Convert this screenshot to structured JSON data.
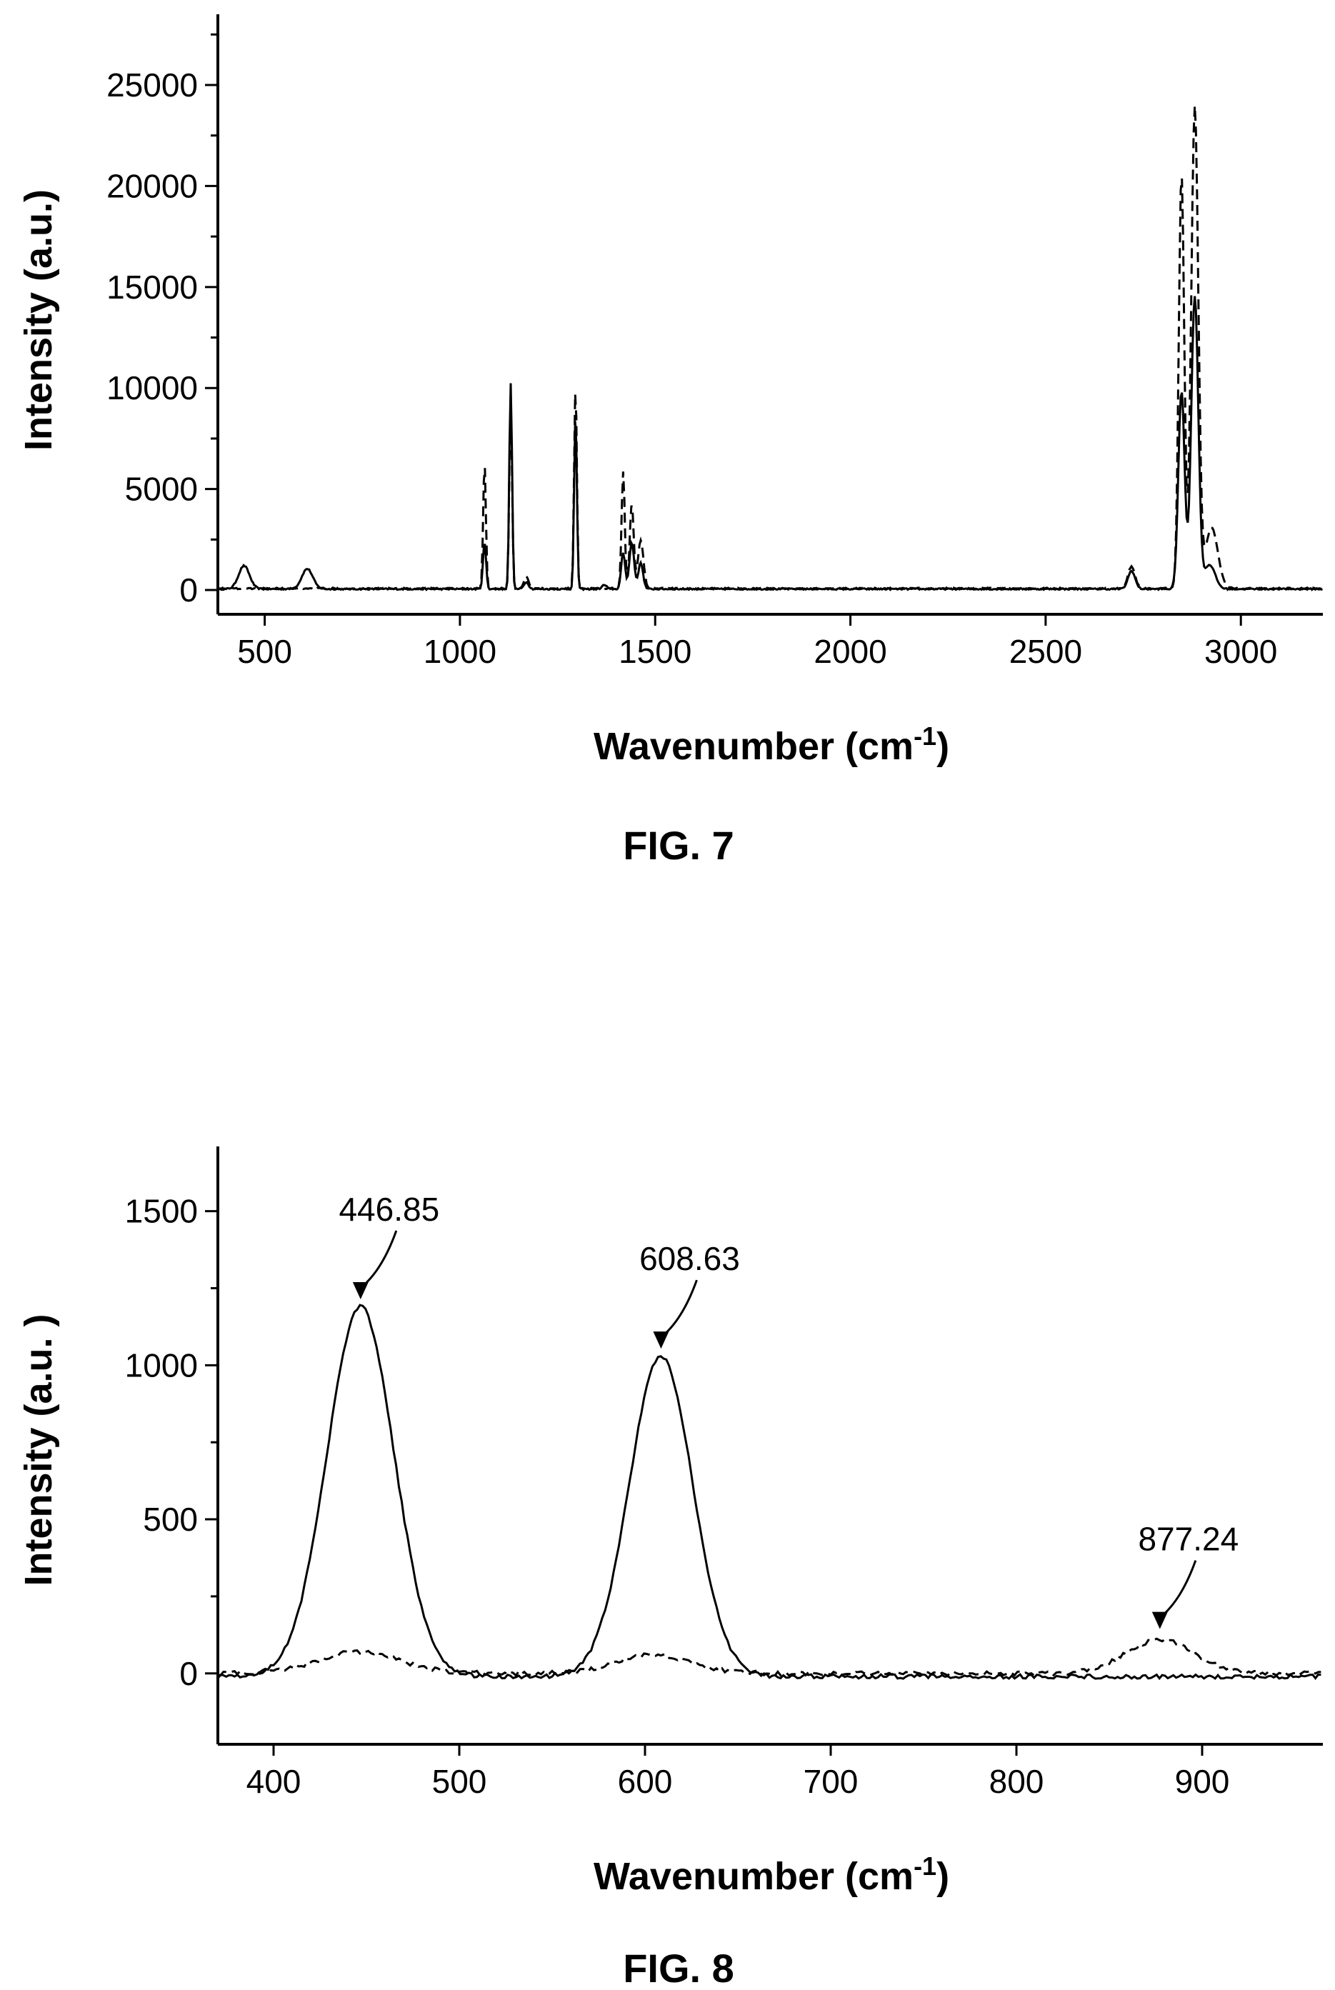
{
  "chart_data": [
    {
      "type": "line",
      "caption": "FIG. 7",
      "xlabel_main": "Wavenumber (cm",
      "xlabel_sup": "-1",
      "xlabel_close": ")",
      "ylabel": "Intensity (a.u.)",
      "xlim": [
        380,
        3210
      ],
      "ylim": [
        -1200,
        28500
      ],
      "xticks": [
        500,
        1000,
        1500,
        2000,
        2500,
        3000
      ],
      "xtick_labels": [
        "500",
        "1000",
        "1500",
        "2000",
        "2500",
        "3000"
      ],
      "yticks": [
        0,
        5000,
        10000,
        15000,
        20000,
        25000
      ],
      "ytick_labels": [
        "0",
        "5000",
        "10000",
        "15000",
        "20000",
        "25000"
      ],
      "grid": false,
      "series": [
        {
          "style": "solid",
          "baseline": 50,
          "peaks": [
            {
              "x": 447,
              "y": 1150,
              "w": 14
            },
            {
              "x": 609,
              "y": 1000,
              "w": 14
            },
            {
              "x": 1063,
              "y": 2300,
              "w": 4
            },
            {
              "x": 1130,
              "y": 10200,
              "w": 3.5
            },
            {
              "x": 1170,
              "y": 350,
              "w": 6
            },
            {
              "x": 1296,
              "y": 8600,
              "w": 3.5
            },
            {
              "x": 1370,
              "y": 200,
              "w": 6
            },
            {
              "x": 1418,
              "y": 1800,
              "w": 5
            },
            {
              "x": 1440,
              "y": 2300,
              "w": 6
            },
            {
              "x": 1463,
              "y": 1300,
              "w": 6
            },
            {
              "x": 2720,
              "y": 900,
              "w": 9
            },
            {
              "x": 2848,
              "y": 9800,
              "w": 8
            },
            {
              "x": 2882,
              "y": 14500,
              "w": 9
            },
            {
              "x": 2920,
              "y": 1200,
              "w": 14
            }
          ]
        },
        {
          "style": "dashed",
          "baseline": 80,
          "peaks": [
            {
              "x": 1063,
              "y": 6200,
              "w": 3.5
            },
            {
              "x": 1130,
              "y": 9300,
              "w": 3.5
            },
            {
              "x": 1170,
              "y": 600,
              "w": 6
            },
            {
              "x": 1296,
              "y": 10000,
              "w": 3.5
            },
            {
              "x": 1418,
              "y": 5800,
              "w": 4
            },
            {
              "x": 1440,
              "y": 4200,
              "w": 5
            },
            {
              "x": 1463,
              "y": 2400,
              "w": 7
            },
            {
              "x": 2720,
              "y": 1100,
              "w": 9
            },
            {
              "x": 2848,
              "y": 20500,
              "w": 7
            },
            {
              "x": 2882,
              "y": 23800,
              "w": 9
            },
            {
              "x": 2925,
              "y": 3000,
              "w": 16
            }
          ]
        }
      ]
    },
    {
      "type": "line",
      "caption": "FIG. 8",
      "xlabel_main": "Wavenumber (cm",
      "xlabel_sup": "-1",
      "xlabel_close": ")",
      "ylabel": "Intensity (a.u. )",
      "xlim": [
        370,
        965
      ],
      "ylim": [
        -230,
        1710
      ],
      "xticks": [
        400,
        500,
        600,
        700,
        800,
        900
      ],
      "xtick_labels": [
        "400",
        "500",
        "600",
        "700",
        "800",
        "900"
      ],
      "yticks": [
        0,
        500,
        1000,
        1500
      ],
      "ytick_labels": [
        "0",
        "500",
        "1000",
        "1500"
      ],
      "grid": false,
      "series": [
        {
          "style": "solid",
          "baseline": -10,
          "peaks": [
            {
              "x": 446.85,
              "y": 1200,
              "w": 18
            },
            {
              "x": 608.63,
              "y": 1040,
              "w": 17
            }
          ]
        },
        {
          "style": "dashed",
          "baseline": 0,
          "peaks": [
            {
              "x": 446,
              "y": 70,
              "w": 22
            },
            {
              "x": 605,
              "y": 60,
              "w": 20
            },
            {
              "x": 877.24,
              "y": 110,
              "w": 18
            }
          ]
        }
      ],
      "annotations": [
        {
          "label": "446.85",
          "x": 446.85,
          "y": 1200
        },
        {
          "label": "608.63",
          "x": 608.63,
          "y": 1040
        },
        {
          "label": "877.24",
          "x": 877.24,
          "y": 130
        }
      ]
    }
  ]
}
